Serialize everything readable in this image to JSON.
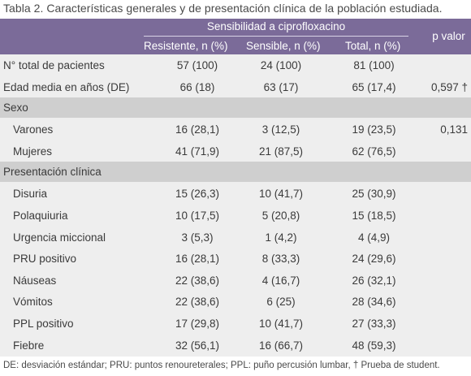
{
  "caption": "Tabla 2. Características generales y de presentación clínica de la población estudiada.",
  "header": {
    "group_label": "Sensibilidad a ciprofloxacino",
    "columns": [
      "Resistente, n (%)",
      "Sensible, n (%)",
      "Total, n (%)"
    ],
    "pvalue_label": "p valor"
  },
  "rows": [
    {
      "label": "N° total de pacientes",
      "values": [
        "57 (100)",
        "24 (100)",
        "81 (100)"
      ],
      "p": ""
    },
    {
      "label": "Edad media en años (DE)",
      "values": [
        "66 (18)",
        "63 (17)",
        "65 (17,4)"
      ],
      "p": "0,597 †"
    }
  ],
  "sections": [
    {
      "title": "Sexo",
      "rows": [
        {
          "label": "Varones",
          "values": [
            "16 (28,1)",
            "3 (12,5)",
            "19 (23,5)"
          ],
          "p": "0,131"
        },
        {
          "label": "Mujeres",
          "values": [
            "41 (71,9)",
            "21 (87,5)",
            "62 (76,5)"
          ],
          "p": ""
        }
      ]
    },
    {
      "title": "Presentación clínica",
      "rows": [
        {
          "label": "Disuria",
          "values": [
            "15 (26,3)",
            "10 (41,7)",
            "25 (30,9)"
          ],
          "p": ""
        },
        {
          "label": "Polaquiuria",
          "values": [
            "10 (17,5)",
            "5 (20,8)",
            "15 (18,5)"
          ],
          "p": ""
        },
        {
          "label": "Urgencia miccional",
          "values": [
            "3 (5,3)",
            "1 (4,2)",
            "4 (4,9)"
          ],
          "p": ""
        },
        {
          "label": "PRU positivo",
          "values": [
            "16 (28,1)",
            "8 (33,3)",
            "24 (29,6)"
          ],
          "p": ""
        },
        {
          "label": "Náuseas",
          "values": [
            "22 (38,6)",
            "4 (16,7)",
            "26 (32,1)"
          ],
          "p": ""
        },
        {
          "label": "Vómitos",
          "values": [
            "22 (38,6)",
            "6 (25)",
            "28 (34,6)"
          ],
          "p": ""
        },
        {
          "label": "PPL positivo",
          "values": [
            "17 (29,8)",
            "10 (41,7)",
            "27 (33,3)"
          ],
          "p": ""
        },
        {
          "label": "Fiebre",
          "values": [
            "32 (56,1)",
            "16 (66,7)",
            "48 (59,3)"
          ],
          "p": ""
        }
      ]
    }
  ],
  "footnote": "DE: desviación estándar; PRU: puntos renoureterales; PPL: puño percusión lumbar, † Prueba de student."
}
